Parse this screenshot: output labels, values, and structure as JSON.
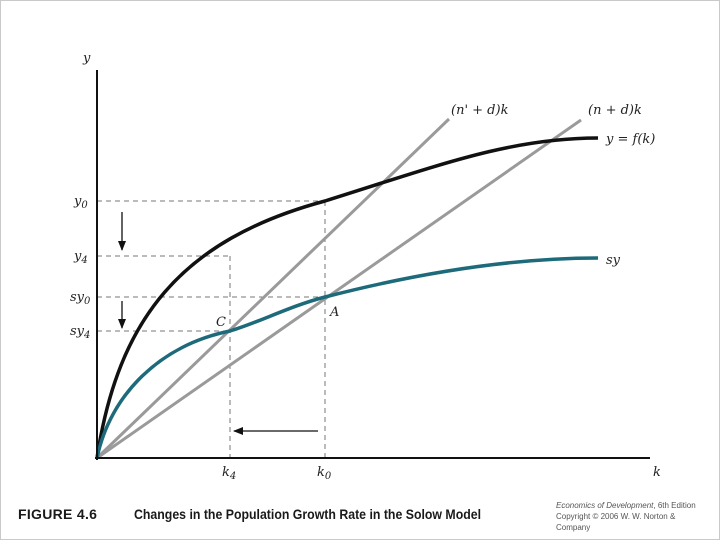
{
  "figure": {
    "number": "FIGURE 4.6",
    "title": "Changes in the Population Growth Rate in the Solow Model"
  },
  "credit": {
    "book": "Economics of Development",
    "edition": ", 6th Edition",
    "copyright": "Copyright © 2006 W. W. Norton & Company"
  },
  "labels": {
    "y_axis": "y",
    "x_axis": "k",
    "fk_curve": "y = f(k)",
    "sy_curve": "sy",
    "line_new": "(n' + d)k",
    "line_old": "(n + d)k",
    "point_a": "A",
    "point_c": "C",
    "y0": "y",
    "y0_sub": "0",
    "y4": "y",
    "y4_sub": "4",
    "sy0": "sy",
    "sy0_sub": "0",
    "sy4": "sy",
    "sy4_sub": "4",
    "k4": "k",
    "k4_sub": "4",
    "k0": "k",
    "k0_sub": "0"
  },
  "colors": {
    "production_curve": "#111111",
    "savings_curve": "#1c6a7a",
    "ray_lines": "#9a9a9a",
    "dashed_guides": "#666666"
  }
}
